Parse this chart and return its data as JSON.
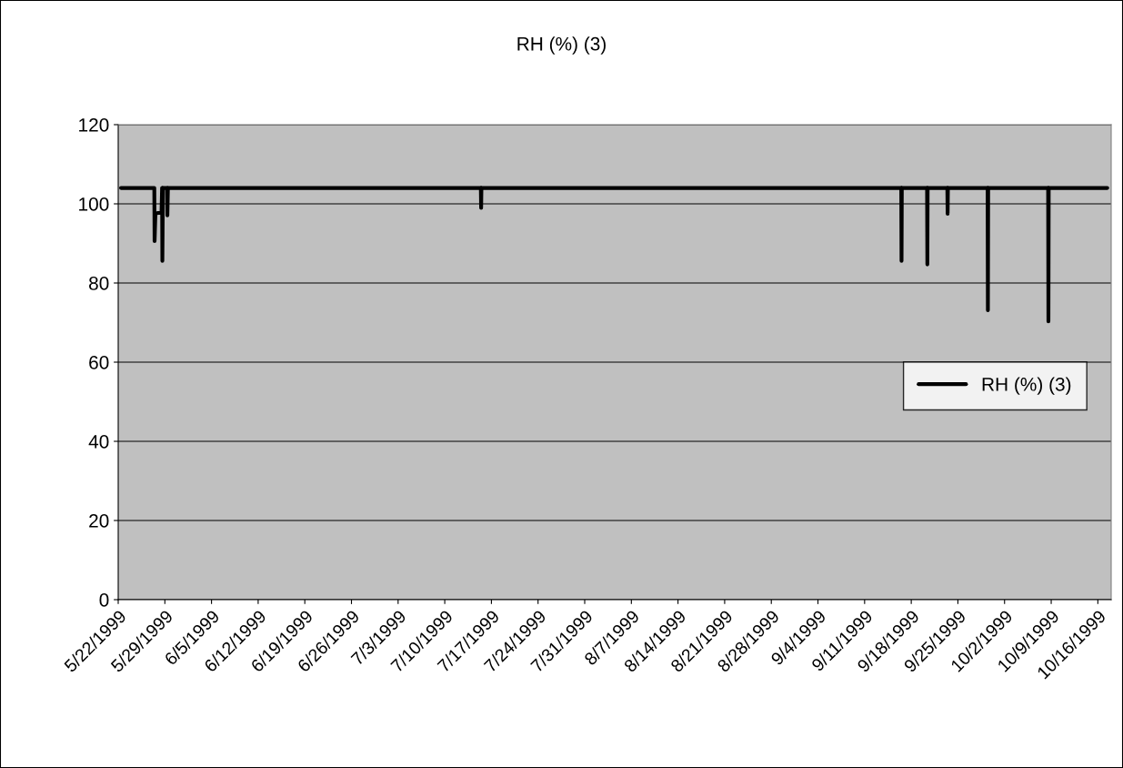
{
  "chart_data": {
    "type": "line",
    "title": "RH (%) (3)",
    "x": [
      "1999-05-22T10:00",
      "1999-05-27T10:00",
      "1999-05-27T11:00",
      "1999-05-27T14:00",
      "1999-05-28T12:00",
      "1999-05-28T14:00",
      "1999-05-28T15:00",
      "1999-05-28T17:00",
      "1999-05-29T08:00",
      "1999-05-29T09:00",
      "1999-05-29T11:00",
      "1999-07-15T10:00",
      "1999-07-15T11:00",
      "1999-07-15T12:00",
      "1999-09-16T12:00",
      "1999-09-16T13:00",
      "1999-09-16T14:00",
      "1999-09-20T09:00",
      "1999-09-20T10:00",
      "1999-09-20T11:00",
      "1999-09-23T10:00",
      "1999-09-23T11:00",
      "1999-09-23T12:00",
      "1999-09-29T11:00",
      "1999-09-29T12:00",
      "1999-09-29T13:00",
      "1999-10-08T13:00",
      "1999-10-08T14:00",
      "1999-10-08T15:00",
      "1999-10-17T10:00"
    ],
    "series": [
      {
        "name": "RH (%) (3)",
        "color": "#000000",
        "values": [
          104,
          104,
          90.6,
          97.5,
          98,
          104,
          85.6,
          104,
          104,
          97.1,
          104,
          104,
          99,
          104,
          104,
          85.6,
          104,
          104,
          84.7,
          104,
          104,
          97.5,
          104,
          104,
          73.1,
          104,
          104,
          70.3,
          104,
          104
        ]
      }
    ],
    "xlim": [
      "1999-05-22",
      "1999-10-18"
    ],
    "xticks": [
      {
        "value": "1999-05-22",
        "label": "5/22/1999"
      },
      {
        "value": "1999-05-29",
        "label": "5/29/1999"
      },
      {
        "value": "1999-06-05",
        "label": "6/5/1999"
      },
      {
        "value": "1999-06-12",
        "label": "6/12/1999"
      },
      {
        "value": "1999-06-19",
        "label": "6/19/1999"
      },
      {
        "value": "1999-06-26",
        "label": "6/26/1999"
      },
      {
        "value": "1999-07-03",
        "label": "7/3/1999"
      },
      {
        "value": "1999-07-10",
        "label": "7/10/1999"
      },
      {
        "value": "1999-07-17",
        "label": "7/17/1999"
      },
      {
        "value": "1999-07-24",
        "label": "7/24/1999"
      },
      {
        "value": "1999-07-31",
        "label": "7/31/1999"
      },
      {
        "value": "1999-08-07",
        "label": "8/7/1999"
      },
      {
        "value": "1999-08-14",
        "label": "8/14/1999"
      },
      {
        "value": "1999-08-21",
        "label": "8/21/1999"
      },
      {
        "value": "1999-08-28",
        "label": "8/28/1999"
      },
      {
        "value": "1999-09-04",
        "label": "9/4/1999"
      },
      {
        "value": "1999-09-11",
        "label": "9/11/1999"
      },
      {
        "value": "1999-09-18",
        "label": "9/18/1999"
      },
      {
        "value": "1999-09-25",
        "label": "9/25/1999"
      },
      {
        "value": "1999-10-02",
        "label": "10/2/1999"
      },
      {
        "value": "1999-10-09",
        "label": "10/9/1999"
      },
      {
        "value": "1999-10-16",
        "label": "10/16/1999"
      }
    ],
    "ylim": [
      0,
      120
    ],
    "yticks": [
      0,
      20,
      40,
      60,
      80,
      100,
      120
    ],
    "grid": "y",
    "legend": "right",
    "line_style": "solid",
    "marker": "none"
  }
}
